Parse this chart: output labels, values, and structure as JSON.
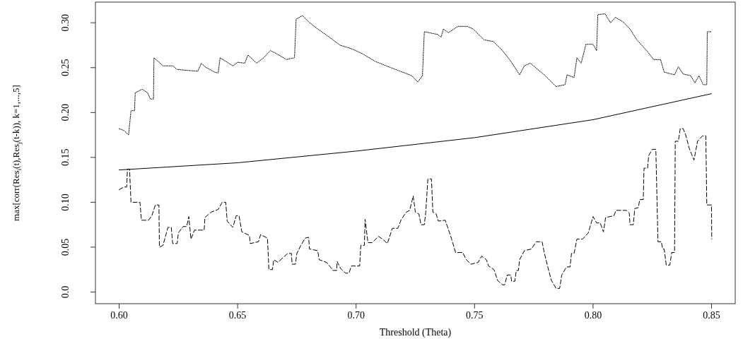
{
  "chart_data": {
    "type": "line",
    "xlabel": "Threshold (Theta)",
    "ylabel": "max[corr(Res$_{i}$(t),Res$_{j}$(t-k)), k=1,...,5]",
    "xlim": [
      0.59,
      0.86
    ],
    "ylim": [
      -0.013,
      0.323
    ],
    "xticks": [
      {
        "value": 0.6,
        "label": "0.60"
      },
      {
        "value": 0.65,
        "label": "0.65"
      },
      {
        "value": 0.7,
        "label": "0.70"
      },
      {
        "value": 0.75,
        "label": "0.75"
      },
      {
        "value": 0.8,
        "label": "0.80"
      },
      {
        "value": 0.85,
        "label": "0.85"
      }
    ],
    "yticks": [
      {
        "value": 0,
        "label": "0.0"
      },
      {
        "value": 0.05,
        "label": "0.05"
      },
      {
        "value": 0.1,
        "label": "0.10"
      },
      {
        "value": 0.15,
        "label": "0.15"
      },
      {
        "value": 0.2,
        "label": "0.20"
      },
      {
        "value": 0.25,
        "label": "0.25"
      },
      {
        "value": 0.3,
        "label": "0.30"
      }
    ],
    "grid": false,
    "marker": "none",
    "series": [
      {
        "color": "#000000",
        "line_style": "dotted",
        "x": [
          0.6,
          0.602,
          0.604,
          0.605,
          0.6065,
          0.6068,
          0.6097,
          0.612,
          0.6132,
          0.6145,
          0.6147,
          0.6185,
          0.6226,
          0.6245,
          0.6285,
          0.6332,
          0.6347,
          0.6362,
          0.6403,
          0.6418,
          0.6426,
          0.648,
          0.65,
          0.653,
          0.6544,
          0.658,
          0.661,
          0.6638,
          0.6668,
          0.6706,
          0.674,
          0.6747,
          0.6774,
          0.68,
          0.6833,
          0.6882,
          0.6932,
          0.697,
          0.699,
          0.703,
          0.708,
          0.7127,
          0.7176,
          0.7226,
          0.7235,
          0.726,
          0.728,
          0.7288,
          0.7344,
          0.7359,
          0.7368,
          0.739,
          0.743,
          0.747,
          0.7494,
          0.754,
          0.758,
          0.7618,
          0.7656,
          0.769,
          0.771,
          0.7735,
          0.7794,
          0.7844,
          0.7882,
          0.789,
          0.792,
          0.7932,
          0.795,
          0.797,
          0.8,
          0.8015,
          0.802,
          0.805,
          0.8074,
          0.8094,
          0.8127,
          0.8156,
          0.8185,
          0.8226,
          0.8256,
          0.8285,
          0.83,
          0.8344,
          0.836,
          0.838,
          0.8412,
          0.843,
          0.8447,
          0.8465,
          0.848,
          0.8482,
          0.85
        ],
        "values": [
          0.182,
          0.18,
          0.175,
          0.202,
          0.202,
          0.222,
          0.226,
          0.222,
          0.215,
          0.215,
          0.261,
          0.252,
          0.252,
          0.248,
          0.247,
          0.246,
          0.255,
          0.251,
          0.245,
          0.244,
          0.261,
          0.252,
          0.256,
          0.255,
          0.264,
          0.255,
          0.261,
          0.269,
          0.265,
          0.259,
          0.261,
          0.304,
          0.308,
          0.301,
          0.294,
          0.285,
          0.275,
          0.272,
          0.27,
          0.265,
          0.257,
          0.252,
          0.247,
          0.242,
          0.241,
          0.234,
          0.241,
          0.29,
          0.287,
          0.284,
          0.293,
          0.289,
          0.296,
          0.296,
          0.293,
          0.281,
          0.279,
          0.269,
          0.256,
          0.242,
          0.252,
          0.255,
          0.242,
          0.229,
          0.231,
          0.242,
          0.239,
          0.261,
          0.255,
          0.276,
          0.276,
          0.269,
          0.309,
          0.31,
          0.3,
          0.306,
          0.301,
          0.293,
          0.281,
          0.269,
          0.259,
          0.259,
          0.245,
          0.242,
          0.251,
          0.243,
          0.241,
          0.233,
          0.241,
          0.231,
          0.231,
          0.29,
          0.29
        ]
      },
      {
        "color": "#000000",
        "line_style": "solid",
        "x": [
          0.6,
          0.65,
          0.7,
          0.72,
          0.75,
          0.8,
          0.85
        ],
        "values": [
          0.136,
          0.144,
          0.157,
          0.163,
          0.172,
          0.192,
          0.221
        ]
      },
      {
        "color": "#000000",
        "line_style": "dashed",
        "x": [
          0.6,
          0.602,
          0.6032,
          0.6035,
          0.6044,
          0.605,
          0.6088,
          0.6094,
          0.6124,
          0.6138,
          0.6153,
          0.6168,
          0.617,
          0.6185,
          0.6206,
          0.622,
          0.6226,
          0.6245,
          0.625,
          0.627,
          0.6285,
          0.6294,
          0.6303,
          0.6318,
          0.6359,
          0.6362,
          0.6388,
          0.6418,
          0.6435,
          0.645,
          0.6456,
          0.648,
          0.6494,
          0.6506,
          0.6518,
          0.655,
          0.6553,
          0.6588,
          0.6597,
          0.6626,
          0.6632,
          0.6647,
          0.6653,
          0.667,
          0.669,
          0.6712,
          0.6727,
          0.673,
          0.6744,
          0.675,
          0.6765,
          0.6785,
          0.68,
          0.6803,
          0.6838,
          0.6844,
          0.6876,
          0.6903,
          0.6918,
          0.692,
          0.6935,
          0.6956,
          0.697,
          0.698,
          0.7015,
          0.702,
          0.7035,
          0.7038,
          0.705,
          0.7068,
          0.7094,
          0.7112,
          0.7132,
          0.7153,
          0.7176,
          0.7191,
          0.7212,
          0.7226,
          0.7241,
          0.725,
          0.7265,
          0.7274,
          0.7288,
          0.7294,
          0.7303,
          0.7318,
          0.7324,
          0.7338,
          0.7347,
          0.7376,
          0.7388,
          0.7403,
          0.742,
          0.745,
          0.7465,
          0.7485,
          0.7515,
          0.753,
          0.755,
          0.7559,
          0.7582,
          0.7597,
          0.7618,
          0.7627,
          0.7638,
          0.7653,
          0.7656,
          0.767,
          0.7676,
          0.7685,
          0.769,
          0.771,
          0.774,
          0.776,
          0.7785,
          0.7794,
          0.7809,
          0.7824,
          0.7844,
          0.7859,
          0.7868,
          0.7888,
          0.7903,
          0.7909,
          0.792,
          0.7932,
          0.7956,
          0.798,
          0.8,
          0.8015,
          0.803,
          0.8044,
          0.8053,
          0.8088,
          0.8097,
          0.8141,
          0.8153,
          0.8156,
          0.817,
          0.8176,
          0.8191,
          0.8197,
          0.8212,
          0.8215,
          0.823,
          0.8235,
          0.825,
          0.8265,
          0.8274,
          0.8288,
          0.8294,
          0.83,
          0.8309,
          0.8324,
          0.8332,
          0.8344,
          0.8347,
          0.836,
          0.8368,
          0.838,
          0.8391,
          0.8406,
          0.8426,
          0.8441,
          0.8462,
          0.8476,
          0.848,
          0.85,
          0.8501
        ],
        "values": [
          0.114,
          0.117,
          0.117,
          0.137,
          0.137,
          0.1,
          0.1,
          0.08,
          0.08,
          0.085,
          0.097,
          0.097,
          0.05,
          0.052,
          0.072,
          0.072,
          0.054,
          0.054,
          0.066,
          0.073,
          0.073,
          0.084,
          0.059,
          0.069,
          0.069,
          0.083,
          0.089,
          0.092,
          0.1,
          0.1,
          0.079,
          0.072,
          0.085,
          0.085,
          0.067,
          0.063,
          0.054,
          0.056,
          0.064,
          0.06,
          0.025,
          0.025,
          0.036,
          0.033,
          0.038,
          0.043,
          0.043,
          0.031,
          0.031,
          0.043,
          0.051,
          0.06,
          0.061,
          0.048,
          0.046,
          0.036,
          0.033,
          0.024,
          0.024,
          0.034,
          0.026,
          0.021,
          0.021,
          0.029,
          0.029,
          0.052,
          0.052,
          0.081,
          0.055,
          0.055,
          0.062,
          0.059,
          0.054,
          0.071,
          0.071,
          0.081,
          0.089,
          0.091,
          0.107,
          0.089,
          0.087,
          0.075,
          0.075,
          0.089,
          0.126,
          0.126,
          0.089,
          0.087,
          0.079,
          0.08,
          0.071,
          0.059,
          0.044,
          0.044,
          0.036,
          0.031,
          0.033,
          0.04,
          0.036,
          0.029,
          0.025,
          0.013,
          0.008,
          0.008,
          0.019,
          0.019,
          0.012,
          0.012,
          0.024,
          0.024,
          0.036,
          0.046,
          0.048,
          0.056,
          0.056,
          0.044,
          0.028,
          0.013,
          0.004,
          0.004,
          0.019,
          0.028,
          0.028,
          0.043,
          0.043,
          0.059,
          0.059,
          0.066,
          0.084,
          0.077,
          0.077,
          0.067,
          0.083,
          0.085,
          0.091,
          0.091,
          0.088,
          0.075,
          0.075,
          0.093,
          0.094,
          0.103,
          0.103,
          0.138,
          0.138,
          0.152,
          0.159,
          0.159,
          0.056,
          0.056,
          0.048,
          0.048,
          0.03,
          0.03,
          0.044,
          0.044,
          0.168,
          0.168,
          0.182,
          0.182,
          0.175,
          0.16,
          0.147,
          0.168,
          0.174,
          0.174,
          0.097,
          0.097,
          0.059
        ]
      }
    ]
  }
}
